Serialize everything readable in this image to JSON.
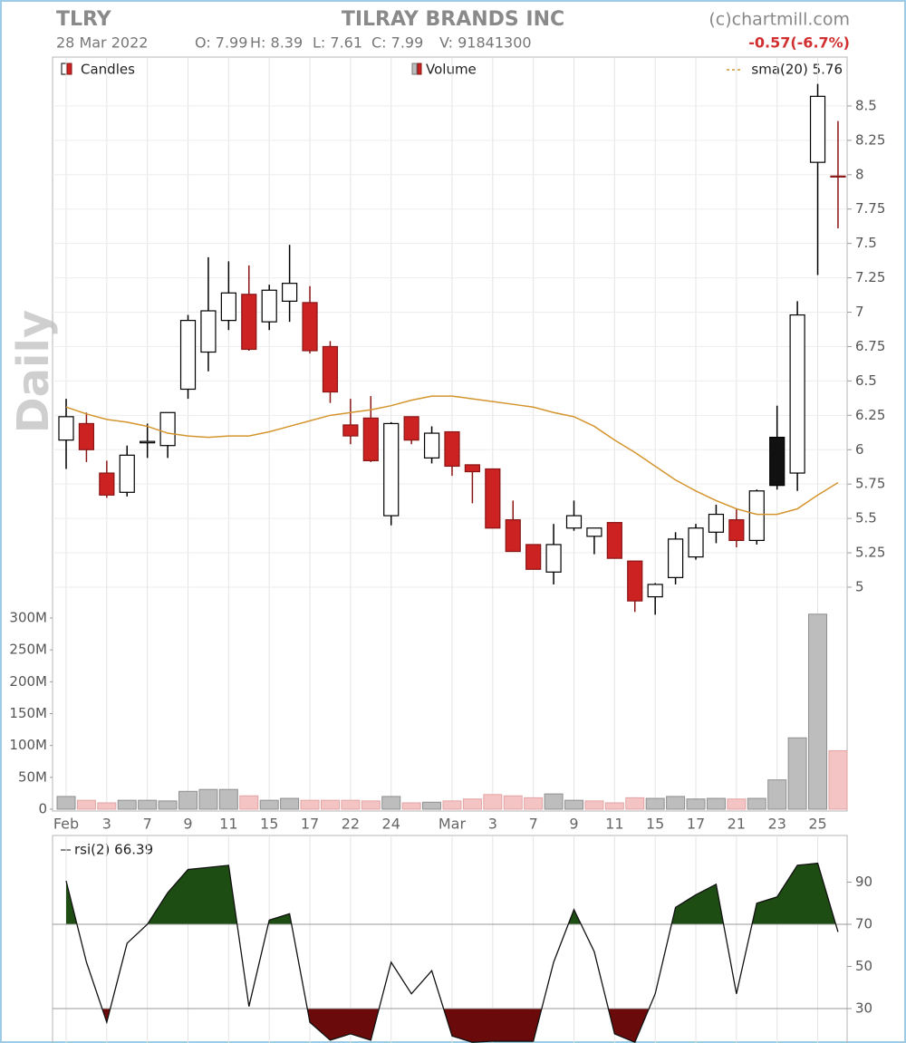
{
  "header": {
    "symbol": "TLRY",
    "name": "TILRAY BRANDS INC",
    "source": "(c)chartmill.com",
    "date": "28 Mar 2022",
    "ohlcv": [
      "O: 7.99",
      "H: 8.39",
      "L: 7.61",
      "C: 7.99",
      "V: 91841300"
    ],
    "change": "-0.57(-6.7%)",
    "period": "Daily"
  },
  "chart_data": [
    {
      "type": "candlestick",
      "legend": "Candles",
      "open": [
        6.07,
        6.19,
        5.83,
        5.69,
        6.05,
        6.03,
        6.44,
        6.71,
        6.94,
        7.13,
        6.93,
        7.08,
        7.07,
        6.75,
        6.18,
        6.23,
        5.52,
        6.24,
        5.94,
        6.13,
        5.89,
        5.86,
        5.49,
        5.31,
        5.11,
        5.43,
        5.37,
        5.47,
        5.19,
        4.93,
        5.07,
        5.22,
        5.4,
        5.49,
        5.34,
        5.74,
        5.83,
        8.09,
        7.99
      ],
      "high": [
        6.37,
        6.27,
        5.92,
        6.03,
        6.19,
        6.27,
        6.98,
        7.4,
        7.37,
        7.34,
        7.2,
        7.49,
        7.19,
        6.79,
        6.37,
        6.39,
        6.2,
        6.24,
        6.17,
        6.13,
        5.89,
        5.86,
        5.63,
        5.31,
        5.46,
        5.63,
        5.43,
        5.47,
        5.19,
        5.03,
        5.4,
        5.46,
        5.6,
        5.57,
        5.71,
        6.32,
        7.08,
        8.66,
        8.39
      ],
      "low": [
        5.86,
        5.91,
        5.65,
        5.66,
        5.94,
        5.94,
        6.37,
        6.57,
        6.87,
        6.72,
        6.87,
        6.93,
        6.7,
        6.34,
        6.04,
        5.91,
        5.45,
        6.04,
        5.9,
        5.81,
        5.61,
        5.43,
        5.26,
        5.13,
        5.02,
        5.41,
        5.24,
        5.21,
        4.82,
        4.8,
        5.02,
        5.2,
        5.32,
        5.29,
        5.31,
        5.71,
        5.7,
        7.27,
        7.61
      ],
      "close": [
        6.24,
        6.0,
        5.67,
        5.96,
        6.06,
        6.27,
        6.94,
        7.01,
        7.14,
        6.73,
        7.16,
        7.21,
        6.72,
        6.42,
        6.1,
        5.92,
        6.19,
        6.07,
        6.12,
        5.88,
        5.84,
        5.43,
        5.26,
        5.13,
        5.31,
        5.52,
        5.43,
        5.21,
        4.9,
        5.02,
        5.35,
        5.43,
        5.53,
        5.34,
        5.7,
        6.09,
        6.98,
        8.57,
        7.99
      ],
      "fills": [
        "#ffffff",
        "#cc2222",
        "#cc2222",
        "#ffffff",
        "#ffffff",
        "#ffffff",
        "#ffffff",
        "#ffffff",
        "#ffffff",
        "#cc2222",
        "#ffffff",
        "#ffffff",
        "#cc2222",
        "#cc2222",
        "#cc2222",
        "#cc2222",
        "#ffffff",
        "#cc2222",
        "#ffffff",
        "#cc2222",
        "#cc2222",
        "#cc2222",
        "#cc2222",
        "#cc2222",
        "#ffffff",
        "#ffffff",
        "#ffffff",
        "#cc2222",
        "#cc2222",
        "#ffffff",
        "#ffffff",
        "#ffffff",
        "#ffffff",
        "#cc2222",
        "#ffffff",
        "#111111",
        "#ffffff",
        "#ffffff",
        "#cc2222"
      ],
      "overlay": {
        "name": "sma(20) 5.76",
        "color": "#d4952e",
        "values": [
          6.31,
          6.26,
          6.22,
          6.2,
          6.17,
          6.12,
          6.1,
          6.09,
          6.1,
          6.1,
          6.13,
          6.17,
          6.21,
          6.25,
          6.27,
          6.29,
          6.32,
          6.36,
          6.39,
          6.39,
          6.37,
          6.35,
          6.33,
          6.31,
          6.27,
          6.24,
          6.17,
          6.07,
          5.98,
          5.88,
          5.78,
          5.7,
          5.63,
          5.57,
          5.53,
          5.53,
          5.57,
          5.67,
          5.76
        ]
      },
      "ylim": [
        4.7,
        8.75
      ],
      "yticks": [
        5,
        5.25,
        5.5,
        5.75,
        6,
        6.25,
        6.5,
        6.75,
        7,
        7.25,
        7.5,
        7.75,
        8,
        8.25,
        8.5
      ],
      "grid": true
    },
    {
      "type": "bar",
      "legend": "Volume",
      "categories": [
        "Feb",
        null,
        "3",
        null,
        "7",
        null,
        "9",
        null,
        "11",
        null,
        "15",
        null,
        "17",
        null,
        "22",
        null,
        "24",
        null,
        null,
        "Mar",
        null,
        "3",
        null,
        "7",
        null,
        "9",
        null,
        "11",
        null,
        "15",
        null,
        "17",
        null,
        "21",
        null,
        "23",
        null,
        "25",
        null
      ],
      "values": [
        20000000,
        14000000,
        10000000,
        14000000,
        14000000,
        13000000,
        28000000,
        31000000,
        31000000,
        21000000,
        14000000,
        17000000,
        14000000,
        14000000,
        14000000,
        13000000,
        20000000,
        10000000,
        11000000,
        13000000,
        16000000,
        23000000,
        21000000,
        18000000,
        24000000,
        14000000,
        13000000,
        10000000,
        18000000,
        17000000,
        20000000,
        16000000,
        17000000,
        16000000,
        17000000,
        46000000,
        112000000,
        306000000,
        91841300
      ],
      "colors": [
        "#bdbdbd",
        "#f4c4c4",
        "#f4c4c4",
        "#bdbdbd",
        "#bdbdbd",
        "#bdbdbd",
        "#bdbdbd",
        "#bdbdbd",
        "#bdbdbd",
        "#f4c4c4",
        "#bdbdbd",
        "#bdbdbd",
        "#f4c4c4",
        "#f4c4c4",
        "#f4c4c4",
        "#f4c4c4",
        "#bdbdbd",
        "#f4c4c4",
        "#bdbdbd",
        "#f4c4c4",
        "#f4c4c4",
        "#f4c4c4",
        "#f4c4c4",
        "#f4c4c4",
        "#bdbdbd",
        "#bdbdbd",
        "#f4c4c4",
        "#f4c4c4",
        "#f4c4c4",
        "#bdbdbd",
        "#bdbdbd",
        "#bdbdbd",
        "#bdbdbd",
        "#f4c4c4",
        "#bdbdbd",
        "#bdbdbd",
        "#bdbdbd",
        "#bdbdbd",
        "#f4c4c4"
      ],
      "ylim": [
        0,
        300000000
      ],
      "yticks": [
        0,
        {
          "value": 50000000,
          "label": "50M"
        },
        {
          "value": 100000000,
          "label": "100M"
        },
        {
          "value": 150000000,
          "label": "150M"
        },
        {
          "value": 200000000,
          "label": "200M"
        },
        {
          "value": 250000000,
          "label": "250M"
        },
        {
          "value": 300000000,
          "label": "300M"
        }
      ]
    },
    {
      "type": "line",
      "series": [
        {
          "name": "rsi(2) 66.39",
          "color": "#111111",
          "values": [
            90.6,
            52,
            23.5,
            61,
            70,
            85,
            96,
            97,
            98,
            31,
            72,
            75,
            23.5,
            15,
            18,
            15,
            52,
            37,
            48,
            17,
            14,
            14.5,
            14.5,
            14.5,
            52,
            77,
            57,
            18,
            14,
            37,
            78,
            84,
            89,
            37,
            80,
            83,
            98,
            99,
            66.39
          ]
        }
      ],
      "thresholds": [
        30,
        70
      ],
      "upper_color": "#1d4d12",
      "lower_color": "#6a0a0a",
      "ylim": [
        14,
        112
      ],
      "yticks": [
        30,
        50,
        70,
        90
      ]
    }
  ]
}
